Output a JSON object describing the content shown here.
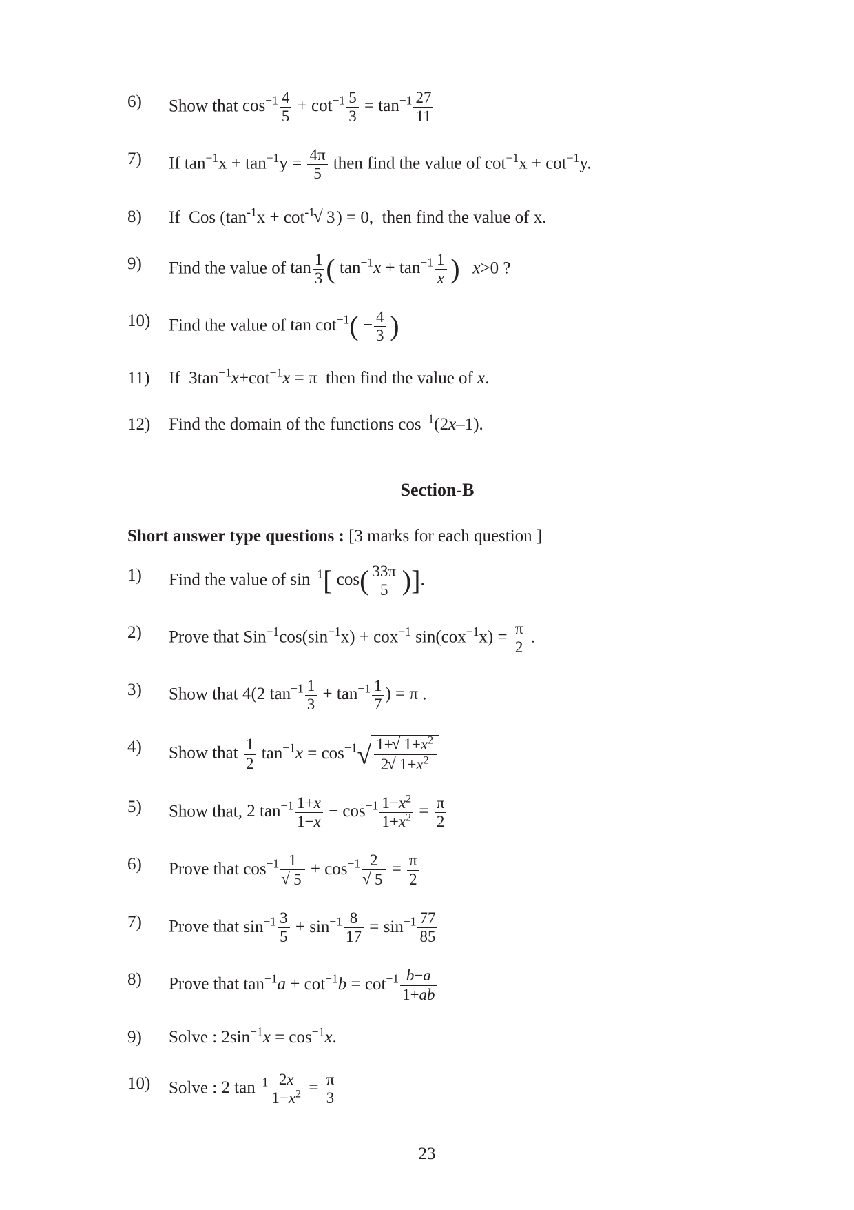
{
  "upper": {
    "items": [
      {
        "num": "6)",
        "stem_html": "Show that <span class='math'>cos<sup>&minus;1</sup><span class='frac'><span class='fn'>4</span><span class='fd'>5</span></span> + cot<sup>&minus;1</sup><span class='frac'><span class='fn'>5</span><span class='fd'>3</span></span> = tan<sup>&minus;1</sup><span class='frac'><span class='fn'>27</span><span class='fd'>11</span></span></span>"
      },
      {
        "num": "7)",
        "stem_html": "If tan<sup>&minus;1</sup>x + tan<sup>&minus;1</sup>y = <span class='frac'><span class='fn'>4&pi;</span><span class='fd'>5</span></span> then find the value of cot<sup>&minus;1</sup>x + cot<sup>&minus;1</sup>y."
      },
      {
        "num": "8)",
        "stem_html": "If&nbsp; Cos&nbsp;(tan<sup>-1</sup>x + cot<sup>-1</sup><span class='sqrt'><span class='rad'>3</span></span>) = 0,&nbsp; then find the value of x."
      },
      {
        "num": "9)",
        "stem_html": "Find the value of <span class='math'>tan<span class='frac'><span class='fn'>1</span><span class='fd'>3</span></span><span class='bigparen'>(</span> tan<sup>&minus;1</sup><span class='it'>x</span> + tan<sup>&minus;1</sup><span class='frac'><span class='fn'>1</span><span class='fd'><span class='it'>x</span></span></span><span class='shim'></span><span class='bigparen'>)</span></span>&nbsp;&nbsp; <span class='it'>x</span>&gt;0 ?"
      },
      {
        "num": "10)",
        "stem_html": "Find the value of <span class='math'>tan cot<sup>&minus;1</sup><span class='bigparen'>(</span> &minus;<span class='frac'><span class='fn'>4</span><span class='fd'>3</span></span><span class='shim'></span><span class='bigparen'>)</span></span>"
      },
      {
        "num": "11)",
        "stem_html": "If&nbsp; 3tan<sup>&minus;1</sup><span class='it'>x</span>+cot<sup>&minus;1</sup><span class='it'>x</span> = &pi;&nbsp; then find the value of <span class='it'>x</span>."
      },
      {
        "num": "12)",
        "stem_html": "Find the domain of the functions cos<sup>&minus;1</sup>(2<span class='it'>x</span>&ndash;1)."
      }
    ]
  },
  "section_b_title": "Section-B",
  "short_answer_head": "Short answer type questions :",
  "short_answer_note": " [3 marks for each question ]",
  "lower": {
    "items": [
      {
        "num": "1)",
        "stem_html": "Find the value of <span class='math'>sin<sup>&minus;1</sup><span class='bigbra'>[</span> cos<span class='bigparen'>(</span><span class='frac'><span class='fn'>33&pi;</span><span class='fd'>5</span></span><span class='shim'></span><span class='bigparen'>)</span><span class='bigbra'>]</span></span>."
      },
      {
        "num": "2)",
        "stem_html": "Prove that Sin<sup>&minus;1</sup>cos(sin<sup>&minus;1</sup>x) + cox<sup>&minus;1</sup> sin(cox<sup>&minus;1</sup>x) = <span class='frac'><span class='fn'>&pi;</span><span class='fd'>2</span></span> ."
      },
      {
        "num": "3)",
        "stem_html": "Show that <span class='math'>4(2 tan<sup>&minus;1</sup><span class='frac'><span class='fn'>1</span><span class='fd'>3</span></span> + tan<sup>&minus;1</sup><span class='frac'><span class='fn'>1</span><span class='fd'>7</span></span>) = &pi;</span> ."
      },
      {
        "num": "4)",
        "stem_html": "Show that <span class='math'><span class='frac'><span class='fn'>1</span><span class='fd'>2</span></span> tan<sup>&minus;1</sup><span class='it'>x</span> = cos<sup>&minus;1</sup><span style='font-size:1.5em;line-height:0;vertical-align:-0.2em'>&radic;</span><span style='display:inline-block;border-top:1.5px solid #231f20;padding:0 2px;'><span class='frac'><span class='fn'>1+<span class='sqrt'><span class='rad'>1+<span class='it'>x</span><sup>2</sup></span></span></span><span class='fd'>2<span class='sqrt'><span class='rad'>1+<span class='it'>x</span><sup>2</sup></span></span></span></span></span></span>"
      },
      {
        "num": "5)",
        "stem_html": "Show that, <span class='math'>2 tan<sup>&minus;1</sup><span class='frac'><span class='fn'>1+<span class='it'>x</span></span><span class='fd'>1&minus;<span class='it'>x</span></span></span> &minus; cos<sup>&minus;1</sup><span class='frac'><span class='fn'>1&minus;<span class='it'>x</span><sup>2</sup></span><span class='fd'>1+<span class='it'>x</span><sup>2</sup></span></span> = <span class='frac'><span class='fn'>&pi;</span><span class='fd'>2</span></span></span>"
      },
      {
        "num": "6)",
        "stem_html": "Prove that <span class='math'>cos<sup>&minus;1</sup><span class='frac'><span class='fn'>1</span><span class='fd'><span class='sqrt'><span class='rad'>5</span></span></span></span> + cos<sup>&minus;1</sup><span class='frac'><span class='fn'>2</span><span class='fd'><span class='sqrt'><span class='rad'>5</span></span></span></span> = <span class='frac'><span class='fn'>&pi;</span><span class='fd'>2</span></span></span>"
      },
      {
        "num": "7)",
        "stem_html": "Prove that <span class='math'>sin<sup>&minus;1</sup><span class='frac'><span class='fn'>3</span><span class='fd'>5</span></span> + sin<sup>&minus;1</sup><span class='frac'><span class='fn'>8</span><span class='fd'>17</span></span> = sin<sup>&minus;1</sup><span class='frac'><span class='fn'>77</span><span class='fd'>85</span></span></span>"
      },
      {
        "num": "8)",
        "stem_html": "Prove that <span class='math'>tan<sup>&minus;1</sup><span class='it'>a</span> + cot<sup>&minus;1</sup><span class='it'>b</span> = cot<sup>&minus;1</sup><span class='frac'><span class='fn'><span class='it'>b</span>&minus;<span class='it'>a</span></span><span class='fd'>1+<span class='it'>ab</span></span></span></span>"
      },
      {
        "num": "9)",
        "stem_html": "Solve : 2sin<sup>&minus;1</sup><span class='it'>x</span> = cos<sup>&minus;1</sup><span class='it'>x</span>."
      },
      {
        "num": "10)",
        "stem_html": "Solve : <span class='math'>2 tan<sup>&minus;1</sup><span class='frac'><span class='fn'>2<span class='it'>x</span></span><span class='fd'>1&minus;<span class='it'>x</span><sup>2</sup></span></span> = <span class='frac'><span class='fn'>&pi;</span><span class='fd'>3</span></span></span>"
      }
    ]
  },
  "page_number": "23",
  "colors": {
    "text": "#231f20",
    "background": "#ffffff"
  },
  "typography": {
    "body_font": "Times New Roman",
    "body_size_pt": 19,
    "heading_weight": "bold"
  }
}
